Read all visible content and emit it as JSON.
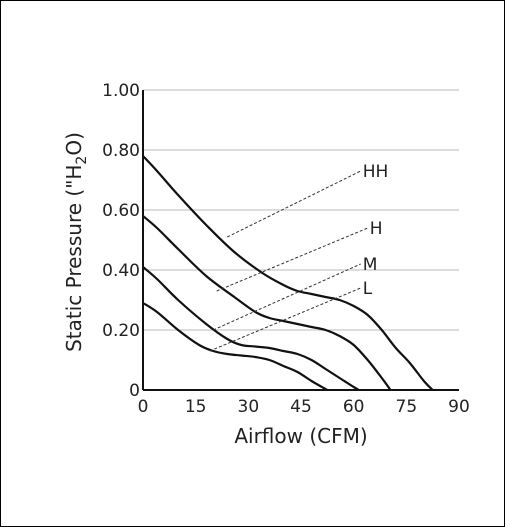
{
  "chart_data": {
    "type": "line",
    "xlabel": "Airflow (CFM)",
    "ylabel": "Static Pressure (\"H",
    "ylabel_subscript": "2",
    "ylabel_suffix": "O)",
    "xlim": [
      0,
      90
    ],
    "ylim": [
      0,
      1.0
    ],
    "x_ticks": [
      "0",
      "15",
      "30",
      "45",
      "60",
      "75",
      "90"
    ],
    "x_tick_values": [
      0,
      15,
      30,
      45,
      60,
      75,
      90
    ],
    "y_ticks": [
      "0",
      "0.20",
      "0.40",
      "0.60",
      "0.80",
      "1.00"
    ],
    "y_tick_values": [
      0,
      0.2,
      0.4,
      0.6,
      0.8,
      1.0
    ],
    "grid": "horizontal",
    "colors": {
      "curve": "#111111",
      "grid": "#bbbbbb",
      "axis": "#111111"
    },
    "series": [
      {
        "name": "HH",
        "x": [
          0,
          4,
          10,
          18,
          26,
          34,
          40,
          44,
          48,
          52,
          56,
          60,
          64,
          68,
          72,
          76,
          80,
          82.5
        ],
        "y": [
          0.78,
          0.73,
          0.65,
          0.55,
          0.46,
          0.39,
          0.35,
          0.33,
          0.32,
          0.31,
          0.3,
          0.28,
          0.25,
          0.2,
          0.14,
          0.09,
          0.03,
          0
        ]
      },
      {
        "name": "H",
        "x": [
          0,
          4,
          10,
          18,
          26,
          32,
          36,
          40,
          44,
          48,
          52,
          56,
          60,
          64,
          68,
          70.5
        ],
        "y": [
          0.58,
          0.54,
          0.47,
          0.38,
          0.31,
          0.26,
          0.24,
          0.23,
          0.22,
          0.21,
          0.2,
          0.18,
          0.15,
          0.1,
          0.04,
          0
        ]
      },
      {
        "name": "M",
        "x": [
          0,
          4,
          10,
          18,
          24,
          28,
          32,
          36,
          40,
          44,
          48,
          52,
          56,
          60,
          61.5
        ],
        "y": [
          0.41,
          0.37,
          0.3,
          0.22,
          0.17,
          0.15,
          0.145,
          0.14,
          0.13,
          0.12,
          0.1,
          0.07,
          0.04,
          0.01,
          0
        ]
      },
      {
        "name": "L",
        "x": [
          0,
          4,
          10,
          16,
          20,
          24,
          28,
          32,
          36,
          40,
          44,
          48,
          52.5
        ],
        "y": [
          0.29,
          0.26,
          0.2,
          0.15,
          0.13,
          0.12,
          0.115,
          0.11,
          0.1,
          0.08,
          0.06,
          0.03,
          0
        ]
      }
    ],
    "annotations": [
      {
        "label": "HH",
        "series": "HH",
        "from": [
          24,
          0.51
        ],
        "to": [
          62,
          0.73
        ]
      },
      {
        "label": "H",
        "series": "H",
        "from": [
          21,
          0.33
        ],
        "to": [
          64,
          0.54
        ]
      },
      {
        "label": "M",
        "series": "M",
        "from": [
          20,
          0.2
        ],
        "to": [
          62,
          0.42
        ]
      },
      {
        "label": "L",
        "series": "L",
        "from": [
          19,
          0.13
        ],
        "to": [
          62,
          0.34
        ]
      }
    ]
  }
}
